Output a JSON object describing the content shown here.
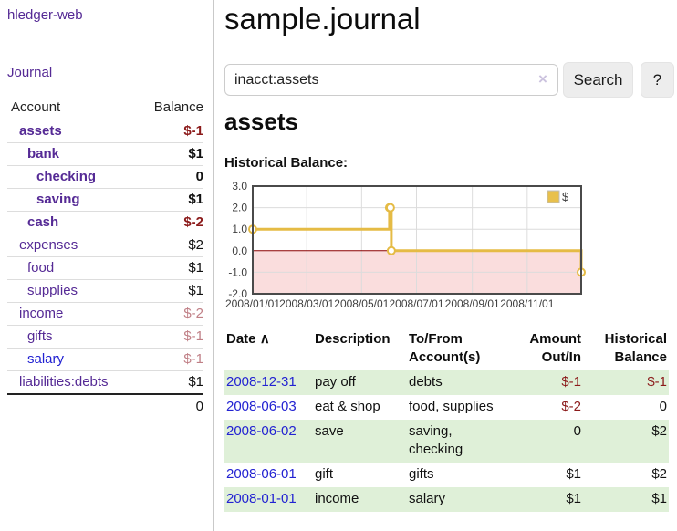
{
  "colors": {
    "link_purple": "#552a95",
    "link_blue": "#2323d2",
    "negative_strong": "#8b1a1a",
    "negative_soft": "#c07f86",
    "row_green": "#dff0d8",
    "chart_gold": "#e5bb45"
  },
  "sidebar": {
    "brand": "hledger-web",
    "nav": {
      "journal": "Journal"
    },
    "table_header": {
      "account": "Account",
      "balance": "Balance"
    },
    "accounts": [
      {
        "name": "assets",
        "balance": "$-1"
      },
      {
        "name": "bank",
        "balance": "$1"
      },
      {
        "name": "checking",
        "balance": "0"
      },
      {
        "name": "saving",
        "balance": "$1"
      },
      {
        "name": "cash",
        "balance": "$-2"
      },
      {
        "name": "expenses",
        "balance": "$2"
      },
      {
        "name": "food",
        "balance": "$1"
      },
      {
        "name": "supplies",
        "balance": "$1"
      },
      {
        "name": "income",
        "balance": "$-2"
      },
      {
        "name": "gifts",
        "balance": "$-1"
      },
      {
        "name": "salary",
        "balance": "$-1"
      },
      {
        "name": "liabilities:debts",
        "balance": "$1"
      }
    ],
    "total": "0"
  },
  "main": {
    "title": "sample.journal",
    "search": {
      "value": "inacct:assets",
      "clear_icon": "×",
      "search_button": "Search",
      "help_button": "?"
    },
    "account_heading": "assets",
    "chart_title": "Historical Balance:"
  },
  "chart_data": {
    "type": "line",
    "step": true,
    "title": "Historical Balance",
    "series": [
      {
        "name": "$",
        "color": "#e5bb45",
        "points": [
          [
            "2008-01-01",
            1
          ],
          [
            "2008-06-01",
            2
          ],
          [
            "2008-06-02",
            2
          ],
          [
            "2008-06-03",
            0
          ],
          [
            "2008-12-31",
            -1
          ]
        ]
      }
    ],
    "x_range": [
      "2008-01-01",
      "2008-12-31"
    ],
    "ylim": [
      -2,
      3
    ],
    "y_ticks": [
      3,
      2,
      1,
      0,
      -1,
      -2
    ],
    "x_ticks": [
      "2008/01/01",
      "2008/03/01",
      "2008/05/01",
      "2008/07/01",
      "2008/09/01",
      "2008/11/01"
    ],
    "legend": {
      "label": "$",
      "position": "top-right"
    },
    "grid": true,
    "colors": {
      "negative_region": "#fadddd",
      "zero_line": "#8b0000",
      "grid": "#dcdcdc",
      "border": "#4a4a4a",
      "tick_text": "#3f3f3f",
      "legend_fill": "#e8c04c",
      "legend_border": "#bdbdbd"
    }
  },
  "register": {
    "header": {
      "date": "Date",
      "sort_indicator": "∧",
      "description": "Description",
      "tofrom_line1": "To/From",
      "tofrom_line2": "Account(s)",
      "amount_line1": "Amount",
      "amount_line2": "Out/In",
      "balance_line1": "Historical",
      "balance_line2": "Balance"
    },
    "rows": [
      {
        "date": "2008-12-31",
        "description": "pay off",
        "accounts": "debts",
        "amount": "$-1",
        "balance": "$-1"
      },
      {
        "date": "2008-06-03",
        "description": "eat & shop",
        "accounts": "food, supplies",
        "amount": "$-2",
        "balance": "0"
      },
      {
        "date": "2008-06-02",
        "description": "save",
        "accounts": "saving, checking",
        "amount": "0",
        "balance": "$2"
      },
      {
        "date": "2008-06-01",
        "description": "gift",
        "accounts": "gifts",
        "amount": "$1",
        "balance": "$2"
      },
      {
        "date": "2008-01-01",
        "description": "income",
        "accounts": "salary",
        "amount": "$1",
        "balance": "$1"
      }
    ]
  }
}
